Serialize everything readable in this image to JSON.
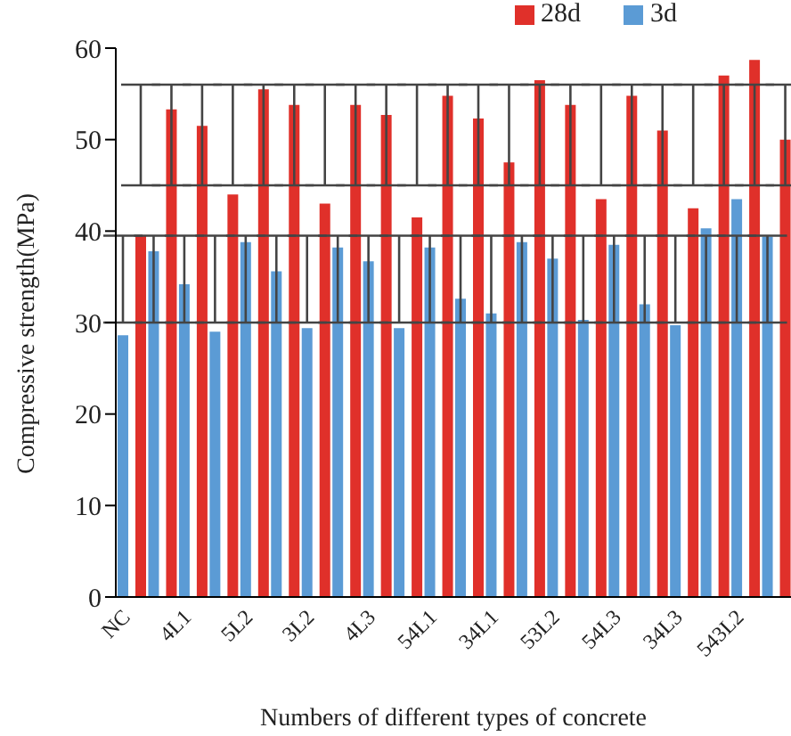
{
  "chart_data": {
    "type": "bar",
    "xlabel": "Numbers of different types of concrete",
    "ylabel": "Compressive strength(MPa)",
    "categories": [
      "NC",
      null,
      "4L1",
      null,
      "5L2",
      null,
      "3L2",
      null,
      "4L3",
      null,
      "54L1",
      null,
      "34L1",
      null,
      "53L2",
      null,
      "54L3",
      null,
      "34L3",
      null,
      "543L2",
      null
    ],
    "series": [
      {
        "name": "3d",
        "color": "#5b9bd5",
        "values": [
          28.6,
          37.8,
          34.2,
          29.0,
          38.8,
          35.6,
          29.4,
          38.2,
          36.7,
          29.4,
          38.2,
          32.6,
          31.0,
          38.8,
          37.0,
          30.3,
          38.5,
          32.0,
          29.7,
          40.3,
          43.5,
          39.4
        ],
        "errors": [
          [
            30,
            39.5
          ],
          [
            30,
            39.5
          ],
          [
            30,
            39.5
          ],
          [
            30,
            39.5
          ],
          [
            30,
            39.5
          ],
          [
            30,
            39.5
          ],
          [
            30,
            39.5
          ],
          [
            30,
            39.5
          ],
          [
            30,
            39.5
          ],
          [
            30,
            39.5
          ],
          [
            30,
            39.5
          ],
          [
            30,
            39.5
          ],
          [
            30,
            39.5
          ],
          [
            30,
            39.5
          ],
          [
            30,
            39.5
          ],
          [
            30,
            39.5
          ],
          [
            30,
            39.5
          ],
          [
            30,
            39.5
          ],
          [
            30,
            39.5
          ],
          [
            30,
            39.5
          ],
          [
            30,
            39.5
          ],
          [
            30,
            39.5
          ]
        ]
      },
      {
        "name": "28d",
        "color": "#e0302a",
        "values": [
          39.5,
          53.3,
          51.5,
          44.0,
          55.5,
          53.8,
          43.0,
          53.8,
          52.7,
          41.5,
          54.8,
          52.3,
          47.5,
          56.5,
          53.8,
          43.5,
          54.8,
          51.0,
          42.5,
          57.0,
          58.7,
          50.0
        ],
        "errors": [
          [
            45,
            56
          ],
          [
            45,
            56
          ],
          [
            45,
            56
          ],
          [
            45,
            56
          ],
          [
            45,
            56
          ],
          [
            45,
            56
          ],
          [
            45,
            56
          ],
          [
            45,
            56
          ],
          [
            45,
            56
          ],
          [
            45,
            56
          ],
          [
            45,
            56
          ],
          [
            45,
            56
          ],
          [
            45,
            56
          ],
          [
            45,
            56
          ],
          [
            45,
            56
          ],
          [
            45,
            56
          ],
          [
            45,
            56
          ],
          [
            45,
            56
          ],
          [
            45,
            56
          ],
          [
            45,
            56
          ],
          [
            45,
            56
          ],
          [
            45,
            56
          ]
        ]
      }
    ],
    "ylim": [
      0,
      60
    ],
    "yticks": [
      0,
      10,
      20,
      30,
      40,
      50,
      60
    ],
    "grid": false,
    "legend": "top right"
  }
}
